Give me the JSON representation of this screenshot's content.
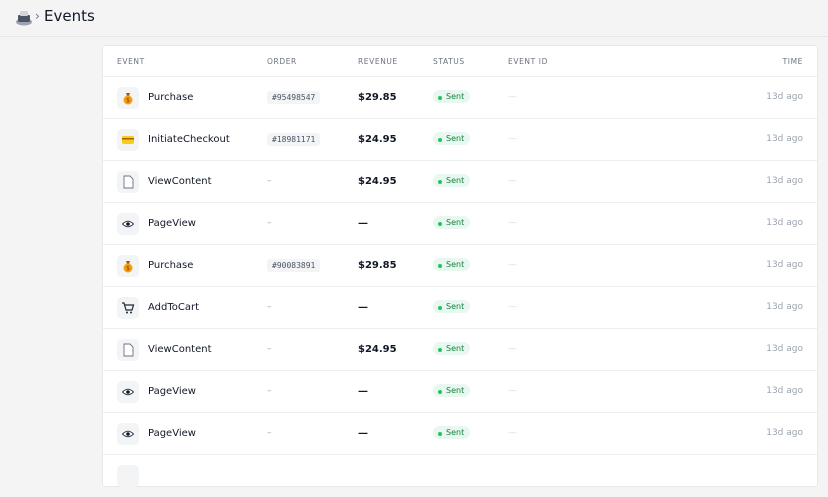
{
  "header": {
    "title": "Events",
    "separator": "›"
  },
  "table": {
    "columns": [
      "EVENT",
      "ORDER",
      "REVENUE",
      "STATUS",
      "EVENT ID",
      "TIME"
    ],
    "rows": [
      [
        "Purchase",
        "#95498547",
        "$29.85",
        "Sent",
        "—",
        "13d ago"
      ],
      [
        "InitiateCheckout",
        "#18981171",
        "$24.95",
        "Sent",
        "—",
        "13d ago"
      ],
      [
        "ViewContent",
        "–",
        "$24.95",
        "Sent",
        "—",
        "13d ago"
      ],
      [
        "PageView",
        "–",
        "—",
        "Sent",
        "—",
        "13d ago"
      ],
      [
        "Purchase",
        "#90083891",
        "$29.85",
        "Sent",
        "—",
        "13d ago"
      ],
      [
        "AddToCart",
        "–",
        "—",
        "Sent",
        "—",
        "13d ago"
      ],
      [
        "ViewContent",
        "–",
        "$24.95",
        "Sent",
        "—",
        "13d ago"
      ],
      [
        "PageView",
        "–",
        "—",
        "Sent",
        "—",
        "13d ago"
      ],
      [
        "PageView",
        "–",
        "—",
        "Sent",
        "—",
        "13d ago"
      ]
    ]
  }
}
